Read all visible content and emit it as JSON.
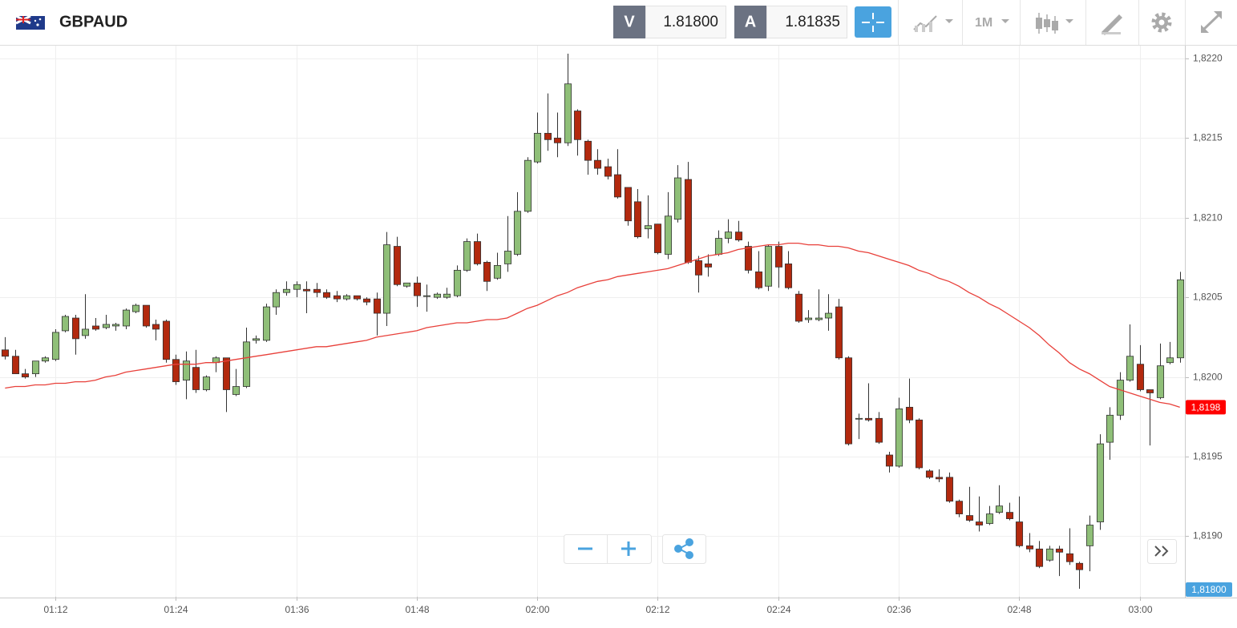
{
  "header": {
    "symbol": "GBPAUD",
    "bid_label": "V",
    "bid": "1.81800",
    "ask_label": "A",
    "ask": "1.81835",
    "timeframe": "1M"
  },
  "chart_data": {
    "type": "candlestick",
    "categories": [
      null,
      null,
      null,
      null,
      null,
      "01:12",
      null,
      null,
      null,
      null,
      null,
      null,
      null,
      null,
      null,
      null,
      null,
      "01:24",
      null,
      null,
      null,
      null,
      null,
      null,
      null,
      null,
      null,
      null,
      null,
      "01:36",
      null,
      null,
      null,
      null,
      null,
      null,
      null,
      null,
      null,
      null,
      null,
      "01:48",
      null,
      null,
      null,
      null,
      null,
      null,
      null,
      null,
      null,
      null,
      null,
      "02:00",
      null,
      null,
      null,
      null,
      null,
      null,
      null,
      null,
      null,
      null,
      null,
      "02:12",
      null,
      null,
      null,
      null,
      null,
      null,
      null,
      null,
      null,
      null,
      null,
      "02:24",
      null,
      null,
      null,
      null,
      null,
      null,
      null,
      null,
      null,
      null,
      null,
      "02:36",
      null,
      null,
      null,
      null,
      null,
      null,
      null,
      null,
      null,
      null,
      null,
      "02:48",
      null,
      null,
      null,
      null,
      null,
      null,
      null,
      null,
      null,
      null,
      null,
      "03:00",
      null,
      null,
      null,
      null
    ],
    "open": [
      1.82017,
      1.82013,
      1.82002,
      1.82002,
      1.8201,
      1.82011,
      1.82029,
      1.82037,
      1.82026,
      1.82032,
      1.82031,
      1.82032,
      1.82032,
      1.82041,
      1.82045,
      1.82033,
      1.82035,
      1.82011,
      1.81998,
      1.82006,
      1.81992,
      1.82009,
      1.82012,
      1.81989,
      1.81994,
      1.82023,
      1.82023,
      1.82044,
      1.82053,
      1.82055,
      1.82055,
      1.82055,
      1.82053,
      1.82051,
      1.82049,
      1.82051,
      1.82049,
      1.82049,
      1.8204,
      1.82082,
      1.82057,
      1.82059,
      1.82051,
      1.8205,
      1.8205,
      1.82051,
      1.82067,
      1.82085,
      1.82072,
      1.82062,
      1.82071,
      1.82077,
      1.82104,
      1.82135,
      1.82153,
      1.8215,
      1.82147,
      1.82167,
      1.82148,
      1.82136,
      1.82132,
      1.82127,
      1.82119,
      1.8211,
      1.82093,
      1.82096,
      1.82077,
      1.82099,
      1.82124,
      1.82073,
      1.82071,
      1.82077,
      1.82087,
      1.82091,
      1.82082,
      1.82066,
      1.82057,
      1.82082,
      1.82071,
      1.82052,
      1.82036,
      1.82036,
      1.82037,
      1.82044,
      1.82012,
      1.81974,
      1.81974,
      1.81974,
      1.81951,
      1.81944,
      1.81981,
      1.81973,
      1.81941,
      1.81937,
      1.81937,
      1.81922,
      1.81913,
      1.81909,
      1.81908,
      1.81915,
      1.81915,
      1.81909,
      1.81894,
      1.81892,
      1.81885,
      1.81892,
      1.81889,
      1.81883,
      1.81894,
      1.81909,
      1.81959,
      1.81976,
      1.81998,
      1.82008,
      1.81992,
      1.81987,
      1.82009,
      1.82012
    ],
    "high": [
      1.82025,
      1.82017,
      1.82005,
      1.8201,
      1.82013,
      1.8203,
      1.82039,
      1.82039,
      1.82052,
      1.82037,
      1.82039,
      1.82034,
      1.82043,
      1.82046,
      1.82045,
      1.82036,
      1.82036,
      1.82014,
      1.82016,
      1.82017,
      1.82001,
      1.82013,
      1.82012,
      1.82005,
      1.82031,
      1.82026,
      1.82046,
      1.82055,
      1.8206,
      1.8206,
      1.8206,
      1.82059,
      1.82055,
      1.82054,
      1.82052,
      1.82051,
      1.8205,
      1.82053,
      1.82091,
      1.82088,
      1.82059,
      1.82063,
      1.82058,
      1.82053,
      1.82056,
      1.8207,
      1.82087,
      1.8209,
      1.82073,
      1.82078,
      1.82101,
      1.82116,
      1.82138,
      1.82166,
      1.82178,
      1.82166,
      1.82203,
      1.82168,
      1.82149,
      1.82143,
      1.82137,
      1.82143,
      1.82119,
      1.82118,
      1.82114,
      1.82096,
      1.82116,
      1.82133,
      1.82135,
      1.82076,
      1.82077,
      1.82092,
      1.82099,
      1.82098,
      1.82085,
      1.82079,
      1.82083,
      1.82085,
      1.82079,
      1.82054,
      1.82042,
      1.82055,
      1.82052,
      1.82049,
      1.82013,
      1.81977,
      1.81996,
      1.81978,
      1.81953,
      1.81987,
      1.81999,
      1.81974,
      1.81942,
      1.81942,
      1.8194,
      1.81923,
      1.81931,
      1.81925,
      1.81919,
      1.81932,
      1.81921,
      1.81925,
      1.81902,
      1.81897,
      1.81894,
      1.81894,
      1.81905,
      1.81884,
      1.81913,
      1.81964,
      1.81981,
      1.82003,
      1.82033,
      1.8202,
      1.81992,
      1.82021,
      1.82022,
      1.82066
    ],
    "low": [
      1.82011,
      1.82002,
      1.81999,
      1.82,
      1.82009,
      1.8201,
      1.82028,
      1.82014,
      1.82024,
      1.82029,
      1.8203,
      1.82029,
      1.8203,
      1.8204,
      1.82031,
      1.82023,
      1.82009,
      1.81995,
      1.81986,
      1.8199,
      1.81991,
      1.82003,
      1.81978,
      1.81988,
      1.81993,
      1.82021,
      1.82022,
      1.82039,
      1.82051,
      1.8205,
      1.8204,
      1.8205,
      1.82049,
      1.82047,
      1.82048,
      1.82048,
      1.82045,
      1.82026,
      1.82032,
      1.82057,
      1.82056,
      1.82044,
      1.82041,
      1.82049,
      1.82049,
      1.8205,
      1.82066,
      1.8207,
      1.82054,
      1.82061,
      1.82066,
      1.82076,
      1.82103,
      1.82134,
      1.82142,
      1.82138,
      1.82145,
      1.82139,
      1.82127,
      1.82127,
      1.82124,
      1.82112,
      1.82095,
      1.82087,
      1.82087,
      1.82077,
      1.82074,
      1.82097,
      1.82071,
      1.82053,
      1.82063,
      1.82076,
      1.82084,
      1.82085,
      1.82065,
      1.82055,
      1.82054,
      1.82056,
      1.82055,
      1.82034,
      1.82034,
      1.82035,
      1.82029,
      1.82011,
      1.81957,
      1.81961,
      1.81972,
      1.81958,
      1.8194,
      1.81943,
      1.81971,
      1.81942,
      1.81936,
      1.81934,
      1.81921,
      1.81912,
      1.81909,
      1.81903,
      1.81907,
      1.81914,
      1.8191,
      1.81893,
      1.8189,
      1.8188,
      1.81884,
      1.81875,
      1.81882,
      1.81867,
      1.81878,
      1.81904,
      1.81948,
      1.81973,
      1.81997,
      1.81991,
      1.81957,
      1.81986,
      1.82008,
      1.82009
    ],
    "close": [
      1.82013,
      1.82002,
      1.82,
      1.8201,
      1.82012,
      1.82028,
      1.82038,
      1.82024,
      1.8203,
      1.8203,
      1.82033,
      1.82033,
      1.82042,
      1.82045,
      1.82032,
      1.8203,
      1.82011,
      1.81997,
      1.8201,
      1.81992,
      1.82,
      1.82012,
      1.81992,
      1.81994,
      1.82022,
      1.82024,
      1.82044,
      1.82053,
      1.82055,
      1.82058,
      1.82054,
      1.82053,
      1.8205,
      1.82049,
      1.82051,
      1.82049,
      1.82047,
      1.8204,
      1.82083,
      1.82058,
      1.82059,
      1.82051,
      1.82051,
      1.82052,
      1.82052,
      1.82067,
      1.82085,
      1.82071,
      1.8206,
      1.8207,
      1.82079,
      1.82104,
      1.82136,
      1.82153,
      1.82149,
      1.82147,
      1.82184,
      1.82149,
      1.82136,
      1.82131,
      1.82126,
      1.82113,
      1.82098,
      1.82088,
      1.82095,
      1.82078,
      1.82101,
      1.82125,
      1.82072,
      1.82064,
      1.82069,
      1.82087,
      1.82091,
      1.82086,
      1.82067,
      1.82056,
      1.82082,
      1.82069,
      1.82056,
      1.82035,
      1.82037,
      1.82037,
      1.8204,
      1.82012,
      1.81958,
      1.81974,
      1.81973,
      1.81959,
      1.81944,
      1.8198,
      1.81973,
      1.81943,
      1.81937,
      1.81936,
      1.81922,
      1.81914,
      1.8191,
      1.81907,
      1.81914,
      1.81919,
      1.81911,
      1.81894,
      1.81892,
      1.81881,
      1.81892,
      1.8189,
      1.81884,
      1.81879,
      1.81907,
      1.81958,
      1.81976,
      1.81998,
      1.82013,
      1.81992,
      1.8199,
      1.82007,
      1.82012,
      1.82061
    ],
    "up_color": "#8fbf78",
    "down_color": "#b3290e",
    "overlay": {
      "color": "#e8403a",
      "values": [
        1.81993,
        1.81994,
        1.81994,
        1.81995,
        1.81995,
        1.81996,
        1.81996,
        1.81997,
        1.81997,
        1.81998,
        1.82,
        1.82001,
        1.82003,
        1.82004,
        1.82005,
        1.82006,
        1.82007,
        1.82008,
        1.82008,
        1.82008,
        1.82009,
        1.82009,
        1.8201,
        1.82011,
        1.82012,
        1.82013,
        1.82014,
        1.82015,
        1.82016,
        1.82017,
        1.82018,
        1.82019,
        1.82019,
        1.8202,
        1.82021,
        1.82022,
        1.82023,
        1.82025,
        1.82026,
        1.82027,
        1.82028,
        1.82029,
        1.82031,
        1.82032,
        1.82033,
        1.82034,
        1.82034,
        1.82035,
        1.82036,
        1.82036,
        1.82037,
        1.8204,
        1.82043,
        1.82045,
        1.82048,
        1.82051,
        1.82053,
        1.82056,
        1.82058,
        1.8206,
        1.82061,
        1.82063,
        1.82064,
        1.82065,
        1.82066,
        1.82067,
        1.82068,
        1.8207,
        1.82072,
        1.82074,
        1.82076,
        1.82077,
        1.82078,
        1.8208,
        1.82081,
        1.82082,
        1.82083,
        1.82083,
        1.82084,
        1.82084,
        1.82083,
        1.82083,
        1.82082,
        1.82082,
        1.82081,
        1.82079,
        1.82078,
        1.82076,
        1.82074,
        1.82072,
        1.8207,
        1.82067,
        1.82065,
        1.82062,
        1.8206,
        1.82057,
        1.82053,
        1.8205,
        1.82046,
        1.82043,
        1.82039,
        1.82035,
        1.82031,
        1.82026,
        1.8202,
        1.82015,
        1.82009,
        1.82005,
        1.82002,
        1.81998,
        1.81994,
        1.81992,
        1.8199,
        1.81988,
        1.81986,
        1.81984,
        1.81983,
        1.81981
      ],
      "last_label": {
        "value": 1.81981,
        "label": "1,8198"
      }
    },
    "price_label": {
      "value": 1.818,
      "label": "1,81800"
    },
    "ylim": [
      1.81862,
      1.82208
    ],
    "yticks": [
      {
        "value": 1.819,
        "label": "1,8190"
      },
      {
        "value": 1.8195,
        "label": "1,8195"
      },
      {
        "value": 1.82,
        "label": "1,8200"
      },
      {
        "value": 1.8205,
        "label": "1,8205"
      },
      {
        "value": 1.821,
        "label": "1,8210"
      },
      {
        "value": 1.8215,
        "label": "1,8215"
      },
      {
        "value": 1.822,
        "label": "1,8220"
      }
    ],
    "grid": true
  }
}
